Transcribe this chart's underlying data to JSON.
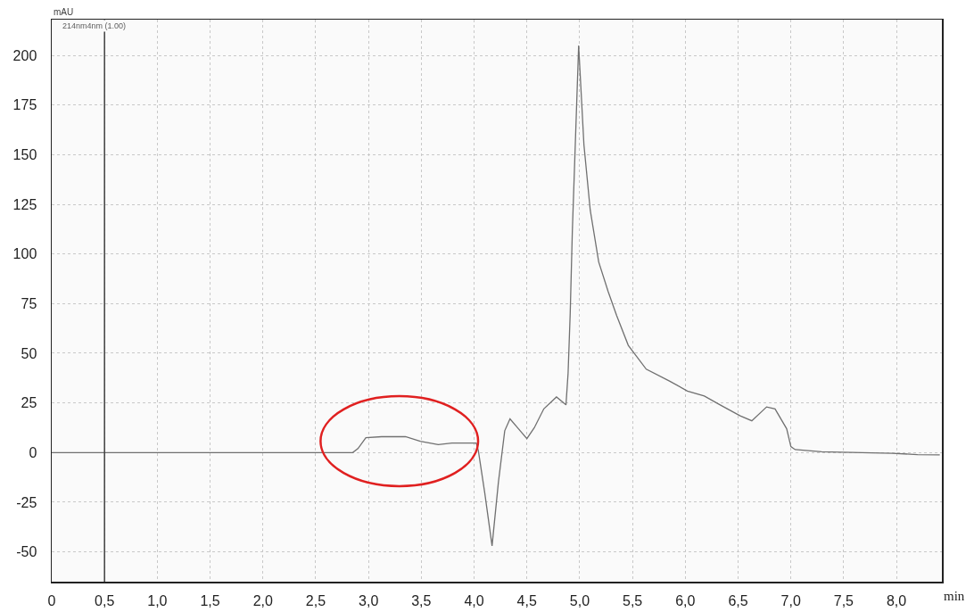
{
  "chart_data": {
    "type": "line",
    "xlabel": "min",
    "ylabel": "mAU",
    "annotations": [
      "214nm4nm (1.00)"
    ],
    "x": [
      0,
      1,
      2,
      2.5,
      2.85,
      2.9,
      2.975,
      3.125,
      3.35,
      3.49,
      3.66,
      3.79,
      4.02,
      4.04,
      4.1,
      4.17,
      4.23,
      4.29,
      4.34,
      4.42,
      4.5,
      4.57,
      4.66,
      4.78,
      4.87,
      4.89,
      4.91,
      4.93,
      4.99,
      5.04,
      5.1,
      5.18,
      5.27,
      5.35,
      5.46,
      5.63,
      5.85,
      6.02,
      6.18,
      6.33,
      6.52,
      6.63,
      6.77,
      6.85,
      6.96,
      7.0,
      7.04,
      7.29,
      7.96,
      8.2,
      8.41
    ],
    "series": [
      {
        "color": "#707070",
        "values": [
          0,
          0,
          0,
          0,
          0,
          2,
          7.5,
          8,
          8,
          5.7,
          4,
          4.8,
          4.8,
          1,
          -20,
          -47,
          -15,
          11,
          17,
          12,
          7,
          12.5,
          22,
          28,
          24,
          40,
          70,
          111,
          205,
          155,
          122,
          96,
          81,
          69,
          54,
          42,
          36,
          31,
          28.5,
          24,
          18.5,
          16,
          23,
          22,
          12,
          3,
          1.5,
          0.4,
          -0.4,
          -1,
          -1.2
        ]
      }
    ],
    "xlim": [
      0,
      8.43
    ],
    "ylim": [
      -65,
      218
    ],
    "xticks": [
      0,
      {
        "value": 0.5,
        "label": "0,5"
      },
      {
        "value": 1,
        "label": "1,0"
      },
      {
        "value": 1.5,
        "label": "1,5"
      },
      {
        "value": 2,
        "label": "2,0"
      },
      {
        "value": 2.5,
        "label": "2,5"
      },
      {
        "value": 3,
        "label": "3,0"
      },
      {
        "value": 3.5,
        "label": "3,5"
      },
      {
        "value": 4,
        "label": "4,0"
      },
      {
        "value": 4.5,
        "label": "4,5"
      },
      {
        "value": 5,
        "label": "5,0"
      },
      {
        "value": 5.5,
        "label": "5,5"
      },
      {
        "value": 6,
        "label": "6,0"
      },
      {
        "value": 6.5,
        "label": "6,5"
      },
      {
        "value": 7,
        "label": "7,0"
      },
      {
        "value": 7.5,
        "label": "7,5"
      },
      {
        "value": 8,
        "label": "8,0"
      }
    ],
    "yticks": [
      -50,
      -25,
      0,
      25,
      50,
      75,
      100,
      125,
      150,
      175,
      200
    ],
    "ref_lines": [
      {
        "axis": "x",
        "value": 0.5,
        "color": "#404040"
      }
    ],
    "grid": true,
    "marker": "none",
    "line_style": "solid"
  }
}
